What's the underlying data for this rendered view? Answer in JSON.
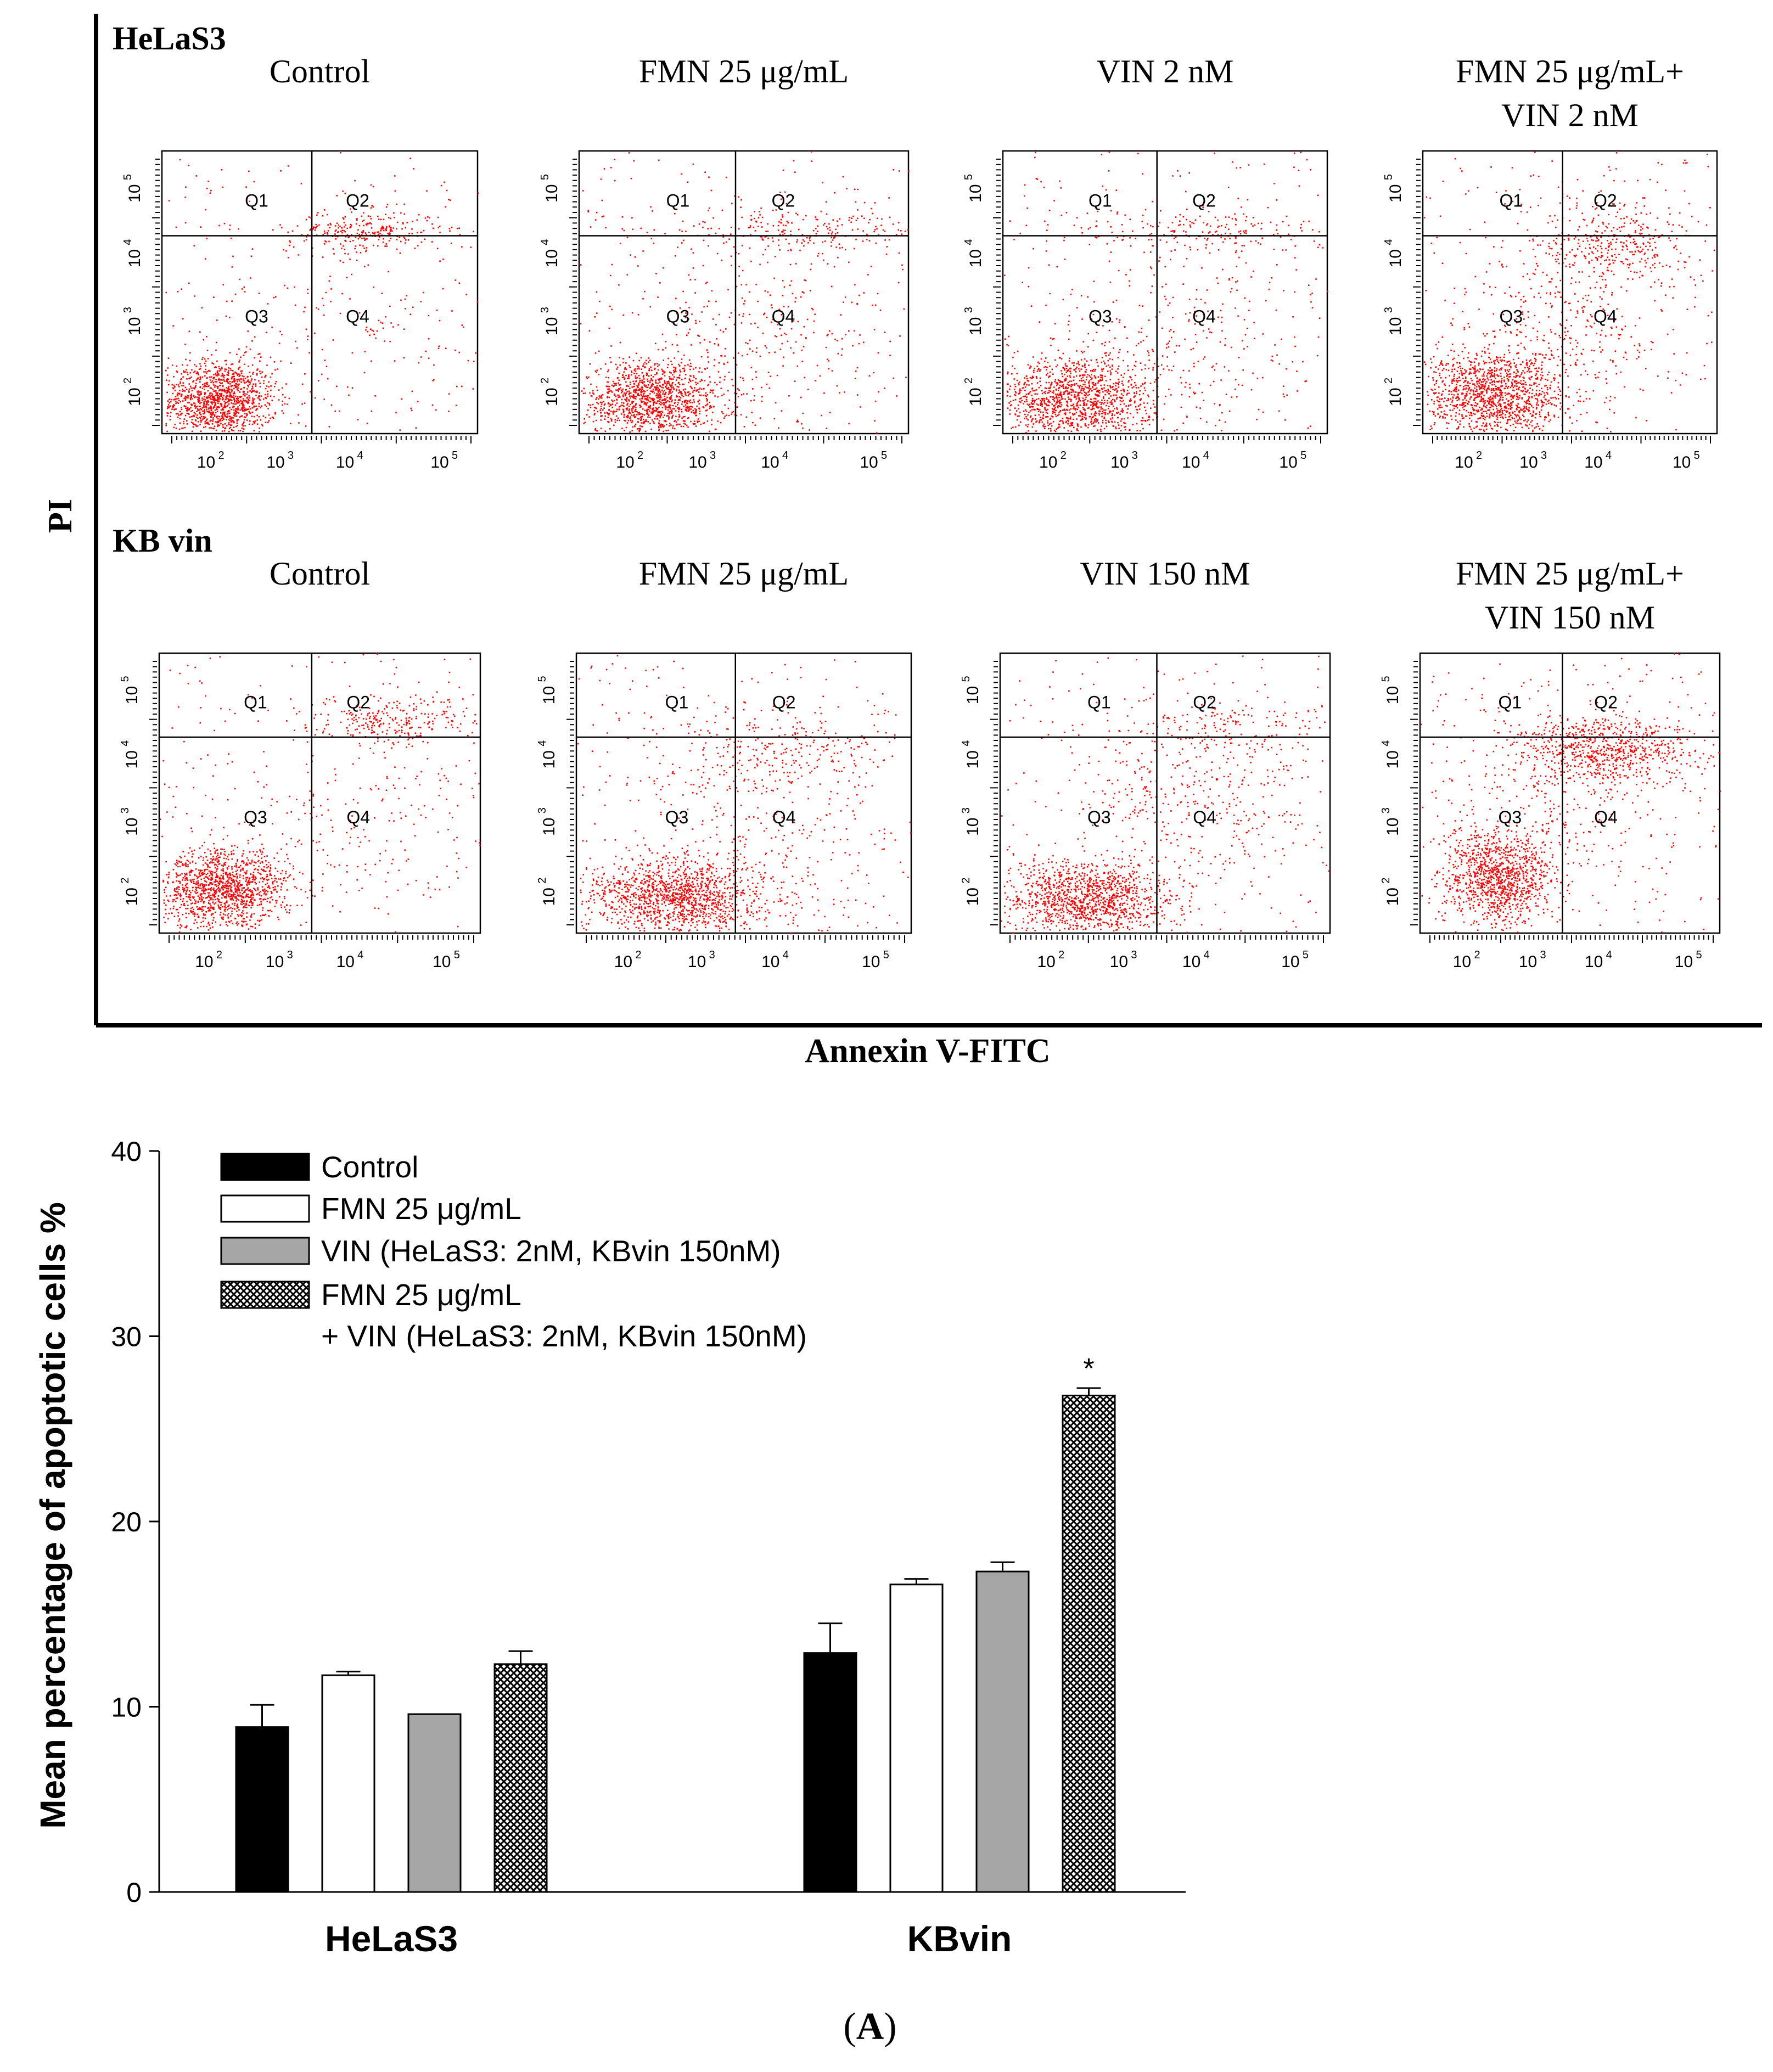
{
  "panel_label": "A",
  "flow": {
    "y_axis_label": "PI",
    "x_axis_label": "Annexin V-FITC",
    "quadrant_labels": [
      "Q1",
      "Q2",
      "Q3",
      "Q4"
    ],
    "tick_labels": [
      "10",
      "2",
      "10",
      "3",
      "10",
      "4",
      "10",
      "5"
    ],
    "rows": [
      {
        "cell_line": "HeLaS3",
        "plots": [
          {
            "title_lines": [
              "Control"
            ]
          },
          {
            "title_lines": [
              "FMN 25 μg/mL"
            ]
          },
          {
            "title_lines": [
              "VIN 2 nM"
            ]
          },
          {
            "title_lines": [
              "FMN 25 μg/mL+",
              "VIN 2 nM"
            ]
          }
        ]
      },
      {
        "cell_line": "KB vin",
        "plots": [
          {
            "title_lines": [
              "Control"
            ]
          },
          {
            "title_lines": [
              "FMN 25 μg/mL"
            ]
          },
          {
            "title_lines": [
              "VIN 150 nM"
            ]
          },
          {
            "title_lines": [
              "FMN 25 μg/mL+",
              "VIN 150 nM"
            ]
          }
        ]
      }
    ]
  },
  "chart_data": {
    "type": "bar",
    "categories": [
      "HeLaS3",
      "KBvin"
    ],
    "ylabel": "Mean percentage of apoptotic cells %",
    "ylim": [
      0,
      40
    ],
    "yticks": [
      0,
      10,
      20,
      30,
      40
    ],
    "legend_position": "top-left",
    "series": [
      {
        "name": "Control",
        "pattern": "solid",
        "color": "#000000",
        "values": [
          8.9,
          12.9
        ],
        "errors": [
          1.2,
          1.6
        ]
      },
      {
        "name": "FMN 25 μg/mL",
        "pattern": "solid",
        "color": "#ffffff",
        "values": [
          11.7,
          16.6
        ],
        "errors": [
          0.2,
          0.3
        ]
      },
      {
        "name": "VIN (HeLaS3: 2nM, KBvin 150nM)",
        "pattern": "solid",
        "color": "#a6a6a6",
        "values": [
          9.6,
          17.3
        ],
        "errors": [
          0.0,
          0.5
        ]
      },
      {
        "name": "FMN 25 μg/mL",
        "name_line2": "+ VIN (HeLaS3: 2nM, KBvin 150nM)",
        "pattern": "crosshatch",
        "color": "#ffffff",
        "values": [
          12.3,
          26.8
        ],
        "errors": [
          0.7,
          0.4
        ]
      }
    ],
    "annotations": [
      {
        "category": "KBvin",
        "series_index": 3,
        "text": "*"
      }
    ]
  }
}
